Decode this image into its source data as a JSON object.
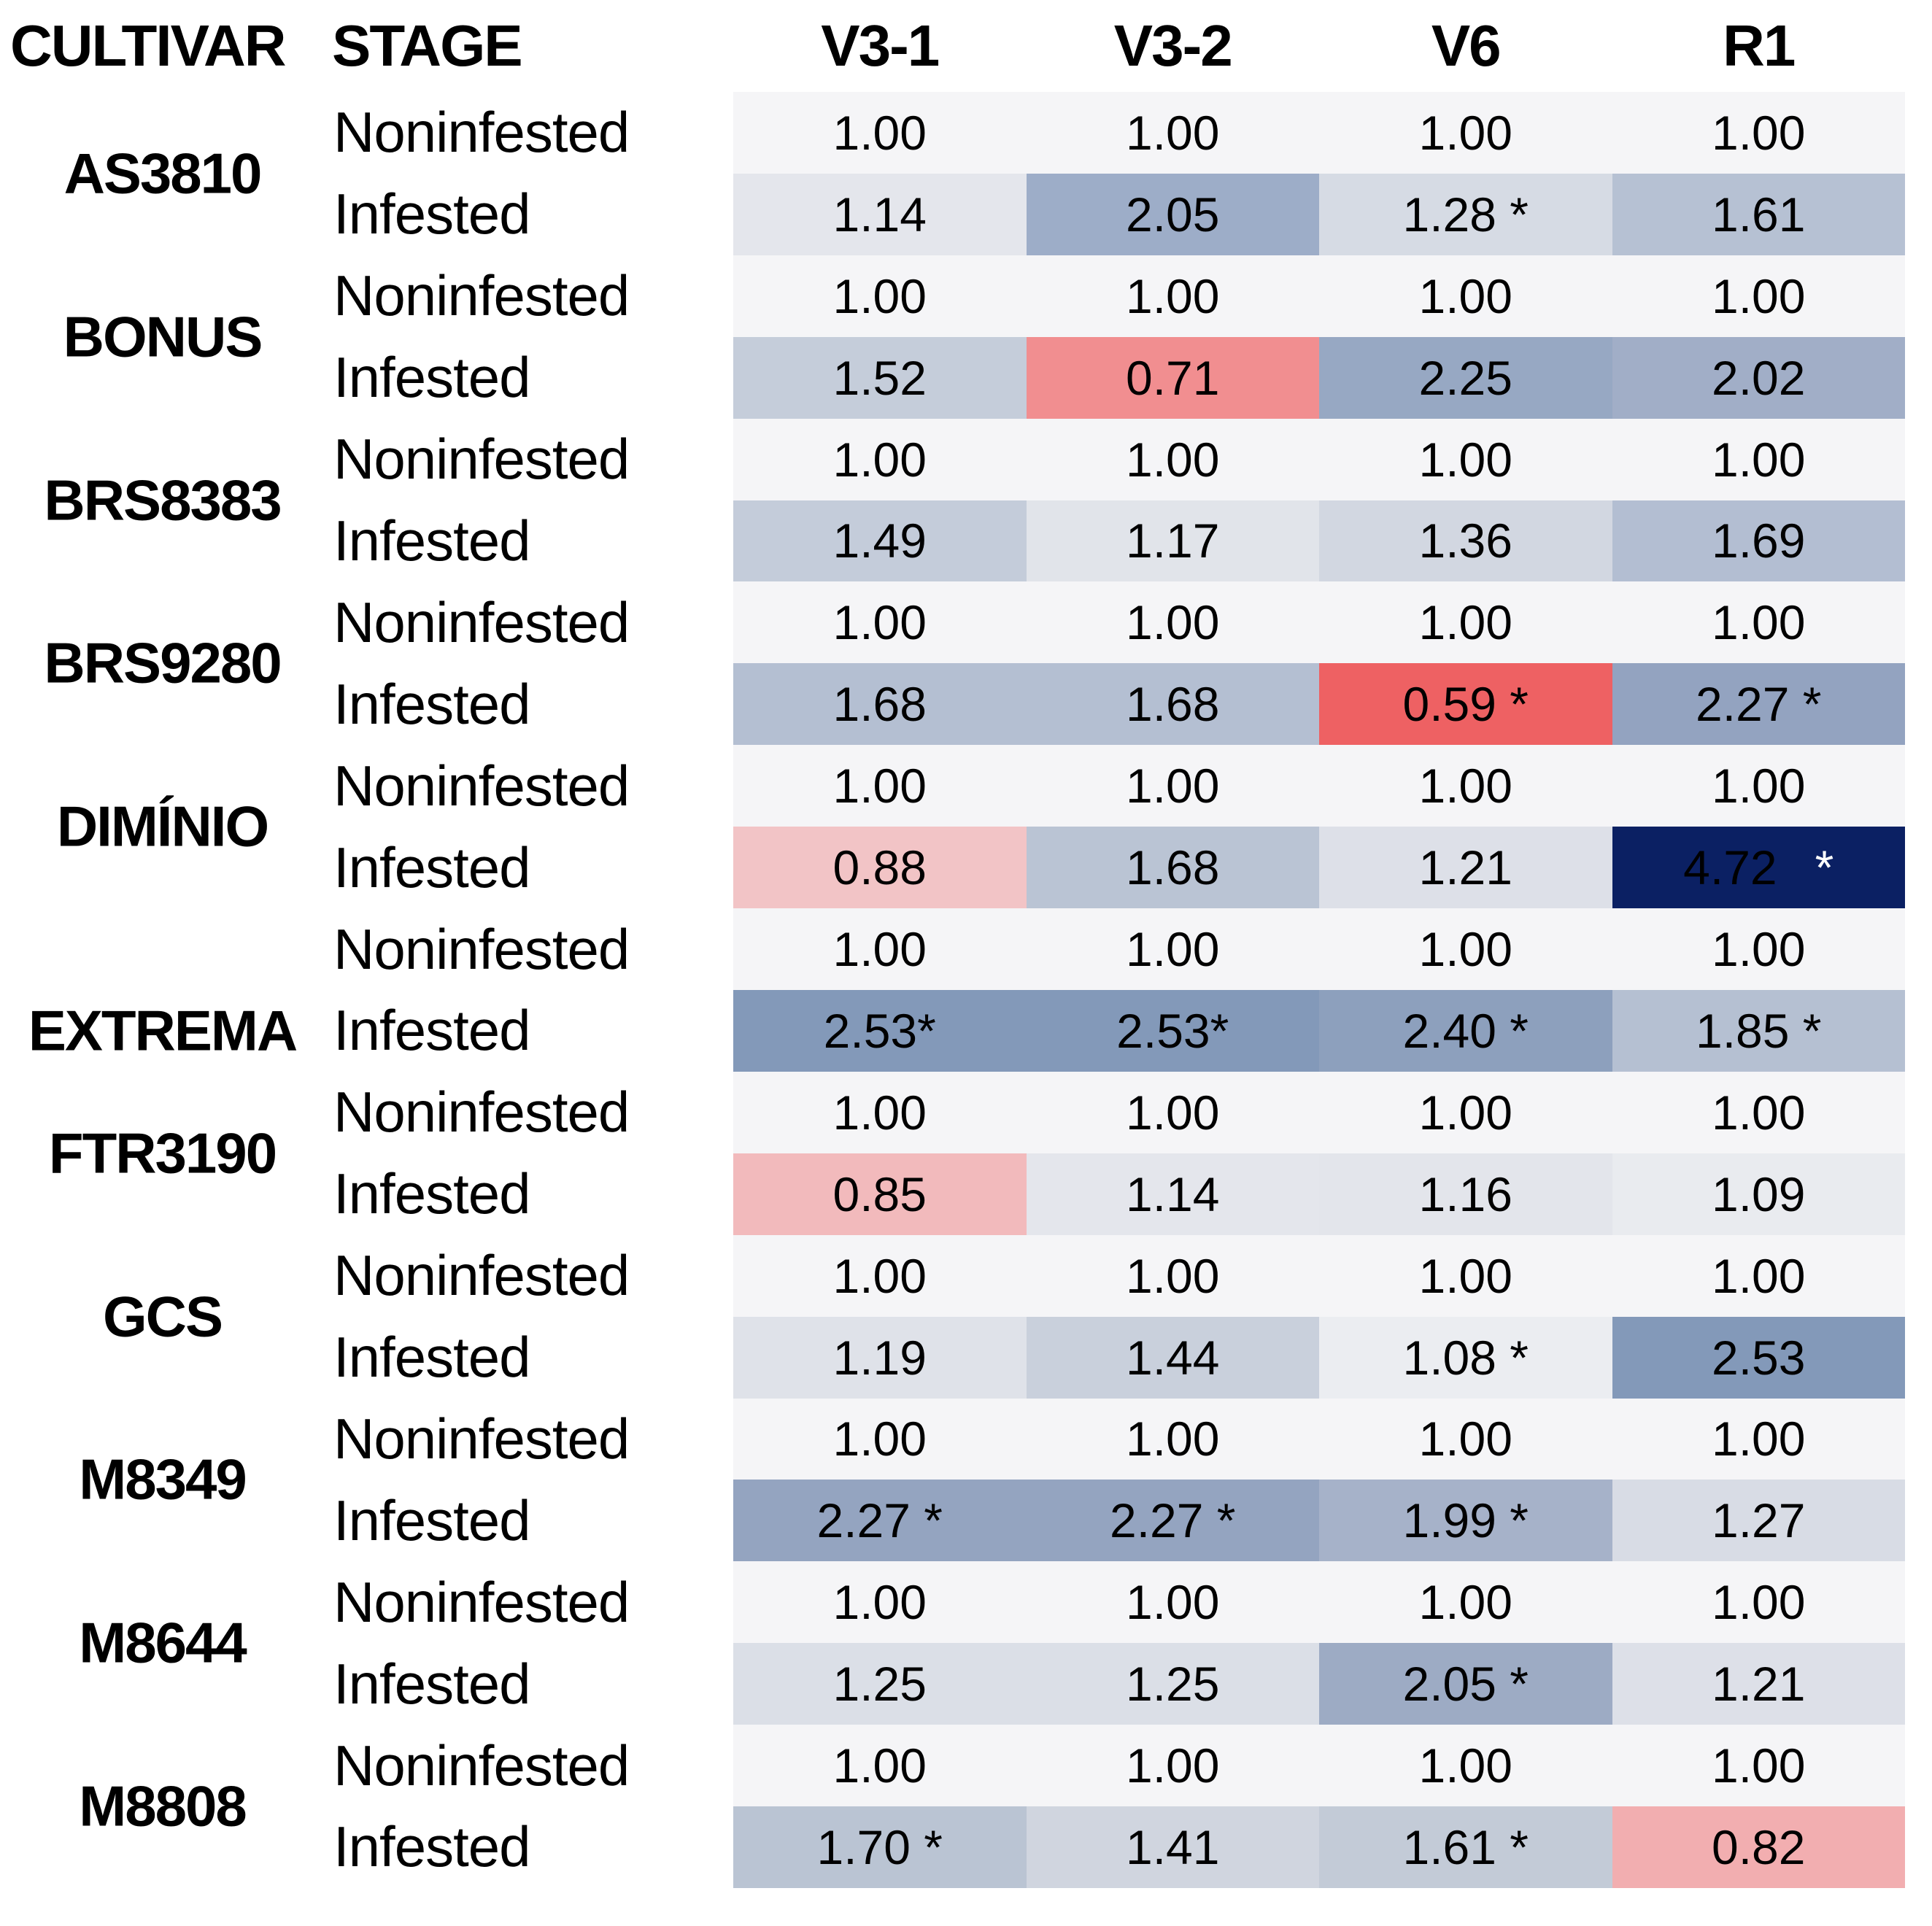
{
  "header": {
    "cultivar": "CULTIVAR",
    "stage": "STAGE",
    "cols": [
      "V3-1",
      "V3-2",
      "V6",
      "R1"
    ]
  },
  "colors": {
    "page_bg": "#ffffff",
    "text": "#000000",
    "noninfested_bg": "#f5f5f7",
    "highest_bg": "#0b2063",
    "lowest_bg": "#ee6163",
    "star_on_dark": "#ffffff"
  },
  "chart_data": {
    "type": "heatmap",
    "columns": [
      "V3-1",
      "V3-2",
      "V6",
      "R1"
    ],
    "stages": [
      "Noninfested",
      "Infested"
    ],
    "cultivars": [
      "AS3810",
      "BONUS",
      "BRS8383",
      "BRS9280",
      "DIMÍNIO",
      "EXTREMA",
      "FTR3190",
      "GCS",
      "M8349",
      "M8644",
      "M8808"
    ],
    "label_on_infested_row": [
      "EXTREMA"
    ],
    "rows": [
      {
        "cultivar": "AS3810",
        "stage": "Noninfested",
        "values": [
          1.0,
          1.0,
          1.0,
          1.0
        ],
        "significant": [
          false,
          false,
          false,
          false
        ],
        "display": [
          "1.00",
          "1.00",
          "1.00",
          "1.00"
        ],
        "bg": [
          "#f5f5f7",
          "#f5f5f7",
          "#f5f5f7",
          "#f5f5f7"
        ]
      },
      {
        "cultivar": "AS3810",
        "stage": "Infested",
        "values": [
          1.14,
          2.05,
          1.28,
          1.61
        ],
        "significant": [
          false,
          false,
          true,
          false
        ],
        "display": [
          "1.14",
          "2.05",
          "1.28 *",
          "1.61"
        ],
        "bg": [
          "#e4e6ec",
          "#9dadc8",
          "#d6dbe4",
          "#b6c1d3"
        ]
      },
      {
        "cultivar": "BONUS",
        "stage": "Noninfested",
        "values": [
          1.0,
          1.0,
          1.0,
          1.0
        ],
        "significant": [
          false,
          false,
          false,
          false
        ],
        "display": [
          "1.00",
          "1.00",
          "1.00",
          "1.00"
        ],
        "bg": [
          "#f5f5f7",
          "#f5f5f7",
          "#f5f5f7",
          "#f5f5f7"
        ]
      },
      {
        "cultivar": "BONUS",
        "stage": "Infested",
        "values": [
          1.52,
          0.71,
          2.25,
          2.02
        ],
        "significant": [
          false,
          false,
          false,
          false
        ],
        "display": [
          "1.52",
          "0.71",
          "2.25",
          "2.02"
        ],
        "bg": [
          "#c5cdda",
          "#f18e90",
          "#97a8c3",
          "#a1aec7"
        ]
      },
      {
        "cultivar": "BRS8383",
        "stage": "Noninfested",
        "values": [
          1.0,
          1.0,
          1.0,
          1.0
        ],
        "significant": [
          false,
          false,
          false,
          false
        ],
        "display": [
          "1.00",
          "1.00",
          "1.00",
          "1.00"
        ],
        "bg": [
          "#f5f5f7",
          "#f5f5f7",
          "#f5f5f7",
          "#f5f5f7"
        ]
      },
      {
        "cultivar": "BRS8383",
        "stage": "Infested",
        "values": [
          1.49,
          1.17,
          1.36,
          1.69
        ],
        "significant": [
          false,
          false,
          false,
          false
        ],
        "display": [
          "1.49",
          "1.17",
          "1.36",
          "1.69"
        ],
        "bg": [
          "#c4ccda",
          "#e1e4ea",
          "#d2d7e1",
          "#b3bed2"
        ]
      },
      {
        "cultivar": "BRS9280",
        "stage": "Noninfested",
        "values": [
          1.0,
          1.0,
          1.0,
          1.0
        ],
        "significant": [
          false,
          false,
          false,
          false
        ],
        "display": [
          "1.00",
          "1.00",
          "1.00",
          "1.00"
        ],
        "bg": [
          "#f5f5f7",
          "#f5f5f7",
          "#f5f5f7",
          "#f5f5f7"
        ]
      },
      {
        "cultivar": "BRS9280",
        "stage": "Infested",
        "values": [
          1.68,
          1.68,
          0.59,
          2.27
        ],
        "significant": [
          false,
          false,
          true,
          true
        ],
        "display": [
          "1.68",
          "1.68",
          "0.59 *",
          "2.27 *"
        ],
        "bg": [
          "#b4bfd2",
          "#b4bfd2",
          "#ee6163",
          "#93a3c0"
        ]
      },
      {
        "cultivar": "DIMÍNIO",
        "stage": "Noninfested",
        "values": [
          1.0,
          1.0,
          1.0,
          1.0
        ],
        "significant": [
          false,
          false,
          false,
          false
        ],
        "display": [
          "1.00",
          "1.00",
          "1.00",
          "1.00"
        ],
        "bg": [
          "#f5f5f7",
          "#f5f5f7",
          "#f5f5f7",
          "#f5f5f7"
        ]
      },
      {
        "cultivar": "DIMÍNIO",
        "stage": "Infested",
        "values": [
          0.88,
          1.68,
          1.21,
          4.72
        ],
        "significant": [
          false,
          false,
          false,
          true
        ],
        "display": [
          "0.88",
          "1.68",
          "1.21",
          "4.72"
        ],
        "bg": [
          "#f2c4c6",
          "#bac4d4",
          "#dde0e8",
          "#0b2063"
        ],
        "white_star_col": 3
      },
      {
        "cultivar": "EXTREMA",
        "stage": "Noninfested",
        "values": [
          1.0,
          1.0,
          1.0,
          1.0
        ],
        "significant": [
          false,
          false,
          false,
          false
        ],
        "display": [
          "1.00",
          "1.00",
          "1.00",
          "1.00"
        ],
        "bg": [
          "#f5f5f7",
          "#f5f5f7",
          "#f5f5f7",
          "#f5f5f7"
        ]
      },
      {
        "cultivar": "EXTREMA",
        "stage": "Infested",
        "values": [
          2.53,
          2.53,
          2.4,
          1.85
        ],
        "significant": [
          true,
          true,
          true,
          true
        ],
        "display": [
          "2.53*",
          "2.53*",
          "2.40 *",
          "1.85 *"
        ],
        "bg": [
          "#8399b9",
          "#8399b9",
          "#8da0bd",
          "#b5c0d2"
        ]
      },
      {
        "cultivar": "FTR3190",
        "stage": "Noninfested",
        "values": [
          1.0,
          1.0,
          1.0,
          1.0
        ],
        "significant": [
          false,
          false,
          false,
          false
        ],
        "display": [
          "1.00",
          "1.00",
          "1.00",
          "1.00"
        ],
        "bg": [
          "#f5f5f7",
          "#f5f5f7",
          "#f5f5f7",
          "#f5f5f7"
        ]
      },
      {
        "cultivar": "FTR3190",
        "stage": "Infested",
        "values": [
          0.85,
          1.14,
          1.16,
          1.09
        ],
        "significant": [
          false,
          false,
          false,
          false
        ],
        "display": [
          "0.85",
          "1.14",
          "1.16",
          "1.09"
        ],
        "bg": [
          "#f2babc",
          "#e4e6ec",
          "#e3e5eb",
          "#e9ebef"
        ]
      },
      {
        "cultivar": "GCS",
        "stage": "Noninfested",
        "values": [
          1.0,
          1.0,
          1.0,
          1.0
        ],
        "significant": [
          false,
          false,
          false,
          false
        ],
        "display": [
          "1.00",
          "1.00",
          "1.00",
          "1.00"
        ],
        "bg": [
          "#f5f5f7",
          "#f5f5f7",
          "#f5f5f7",
          "#f5f5f7"
        ]
      },
      {
        "cultivar": "GCS",
        "stage": "Infested",
        "values": [
          1.19,
          1.44,
          1.08,
          2.53
        ],
        "significant": [
          false,
          false,
          true,
          false
        ],
        "display": [
          "1.19",
          "1.44",
          "1.08 *",
          "2.53"
        ],
        "bg": [
          "#dfe2e9",
          "#c9d0dc",
          "#ebedf1",
          "#8399b9"
        ]
      },
      {
        "cultivar": "M8349",
        "stage": "Noninfested",
        "values": [
          1.0,
          1.0,
          1.0,
          1.0
        ],
        "significant": [
          false,
          false,
          false,
          false
        ],
        "display": [
          "1.00",
          "1.00",
          "1.00",
          "1.00"
        ],
        "bg": [
          "#f5f5f7",
          "#f5f5f7",
          "#f5f5f7",
          "#f5f5f7"
        ]
      },
      {
        "cultivar": "M8349",
        "stage": "Infested",
        "values": [
          2.27,
          2.27,
          1.99,
          1.27
        ],
        "significant": [
          true,
          true,
          true,
          false
        ],
        "display": [
          "2.27 *",
          "2.27 *",
          "1.99 *",
          "1.27"
        ],
        "bg": [
          "#94a4c0",
          "#94a4c0",
          "#a6b2c9",
          "#d8dce5"
        ]
      },
      {
        "cultivar": "M8644",
        "stage": "Noninfested",
        "values": [
          1.0,
          1.0,
          1.0,
          1.0
        ],
        "significant": [
          false,
          false,
          false,
          false
        ],
        "display": [
          "1.00",
          "1.00",
          "1.00",
          "1.00"
        ],
        "bg": [
          "#f5f5f7",
          "#f5f5f7",
          "#f5f5f7",
          "#f5f5f7"
        ]
      },
      {
        "cultivar": "M8644",
        "stage": "Infested",
        "values": [
          1.25,
          1.25,
          2.05,
          1.21
        ],
        "significant": [
          false,
          false,
          true,
          false
        ],
        "display": [
          "1.25",
          "1.25",
          "2.05 *",
          "1.21"
        ],
        "bg": [
          "#dbdfe7",
          "#dbdfe7",
          "#9dabc4",
          "#dde0e8"
        ]
      },
      {
        "cultivar": "M8808",
        "stage": "Noninfested",
        "values": [
          1.0,
          1.0,
          1.0,
          1.0
        ],
        "significant": [
          false,
          false,
          false,
          false
        ],
        "display": [
          "1.00",
          "1.00",
          "1.00",
          "1.00"
        ],
        "bg": [
          "#f5f5f7",
          "#f5f5f7",
          "#f5f5f7",
          "#f5f5f7"
        ]
      },
      {
        "cultivar": "M8808",
        "stage": "Infested",
        "values": [
          1.7,
          1.41,
          1.61,
          0.82
        ],
        "significant": [
          true,
          false,
          true,
          false
        ],
        "display": [
          "1.70 *",
          "1.41",
          "1.61 *",
          "0.82"
        ],
        "bg": [
          "#bac4d3",
          "#d0d5df",
          "#c3cbd7",
          "#f2aeb0"
        ]
      }
    ]
  }
}
